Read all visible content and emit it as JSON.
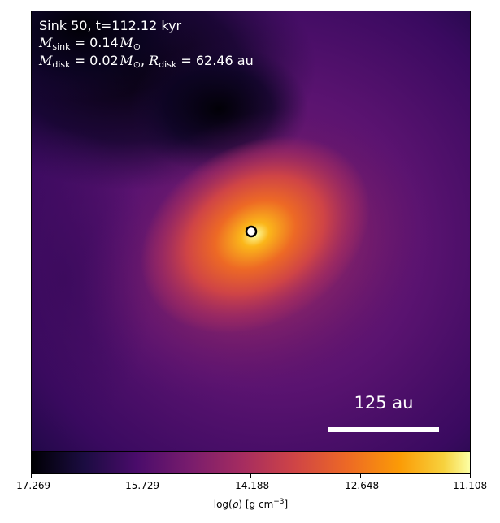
{
  "annotation": {
    "title": "Sink 50, t=112.12 kyr",
    "m_sink_symbol": "M",
    "m_sink_sub": "sink",
    "m_sink_value": " = 0.14",
    "m_sink_unit": "M",
    "m_sink_unit_sub": "⊙",
    "m_disk_symbol": "M",
    "m_disk_sub": "disk",
    "m_disk_value": " = 0.02",
    "m_disk_unit": "M",
    "m_disk_unit_sub": "⊙",
    "r_disk_sep": ", ",
    "r_disk_symbol": "R",
    "r_disk_sub": "disk",
    "r_disk_value": " = 62.46 au"
  },
  "scale_bar": {
    "label": "125 au"
  },
  "colorbar": {
    "colormap": "inferno",
    "ticks": [
      "-17.269",
      "-15.729",
      "-14.188",
      "-12.648",
      "-11.108"
    ],
    "label_prefix": "log(",
    "label_rho": "ρ",
    "label_mid": ") [g cm",
    "label_exp": "−3",
    "label_suffix": "]"
  },
  "colors": {
    "background_field": "#3d0a62",
    "core": "#fcffa4",
    "sink_marker_fill": "#ffffff",
    "sink_marker_ring": "#000000",
    "text": "#ffffff"
  }
}
